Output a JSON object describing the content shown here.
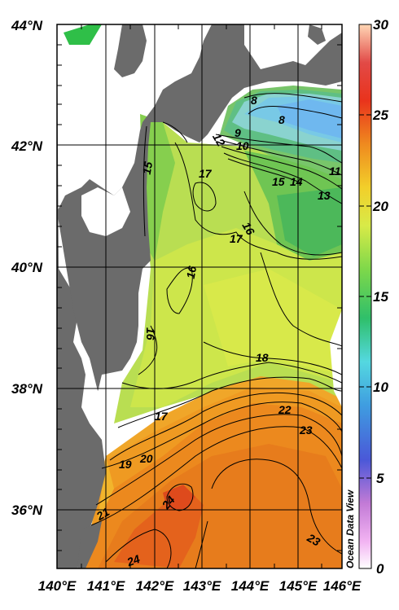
{
  "watermark": "Ocean Data View",
  "lat_labels": [
    "44°N",
    "42°N",
    "40°N",
    "38°N",
    "36°N"
  ],
  "lon_labels": [
    "140°E",
    "141°E",
    "142°E",
    "143°E",
    "144°E",
    "145°E",
    "146°E"
  ],
  "colorbar": {
    "min": 0,
    "max": 30,
    "ticks": [
      "30",
      "25",
      "20",
      "15",
      "10",
      "5",
      "0"
    ]
  },
  "contour_labels": [
    "8",
    "8",
    "9",
    "10",
    "12",
    "11",
    "13",
    "14",
    "15",
    "15",
    "16",
    "16",
    "16",
    "17",
    "17",
    "17",
    "18",
    "19",
    "20",
    "21",
    "22",
    "23",
    "23",
    "24",
    "24"
  ],
  "colors": {
    "land": "#6b6b6b",
    "grid": "#000000",
    "warm": "#e7791b",
    "mid": "#c7e74f",
    "cool": "#3cbf5a",
    "cold": "#6fd0e4"
  }
}
